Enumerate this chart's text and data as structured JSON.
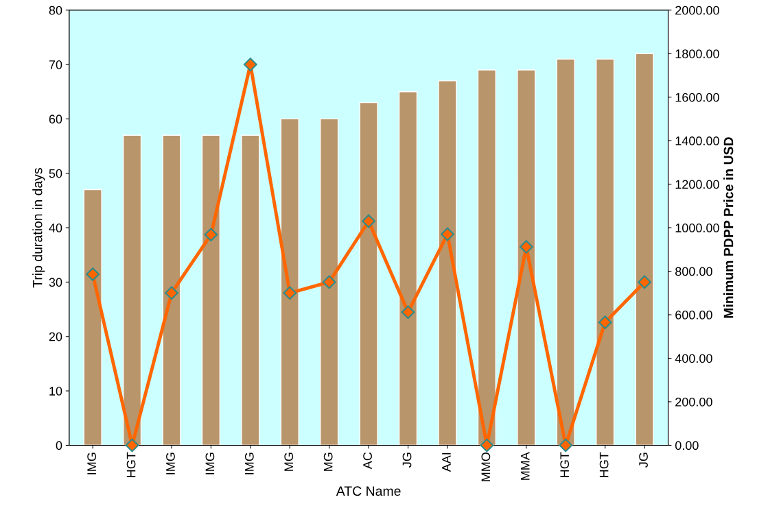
{
  "chart_data": {
    "type": "bar",
    "xlabel": "ATC Name",
    "ylabel": "Trip duration in days",
    "y2label": "Minimum PDPP Price in USD",
    "categories": [
      "IMG",
      "HGT",
      "IMG",
      "IMG",
      "IMG",
      "MG",
      "MG",
      "AC",
      "JG",
      "AAI",
      "MMO",
      "MMA",
      "HGT",
      "HGT",
      "JG"
    ],
    "series": [
      {
        "color": "#b8956a",
        "values": [
          47,
          57,
          57,
          57,
          57,
          60,
          60,
          63,
          65,
          67,
          69,
          69,
          71,
          71,
          72
        ]
      },
      {
        "type": "line",
        "axis": "y2",
        "color": "#ff6600",
        "marker": "diamond",
        "line_style": "solid",
        "values": [
          786,
          0,
          700,
          968,
          1750,
          700,
          750,
          1030,
          612,
          970,
          0,
          912,
          0,
          565,
          750
        ]
      }
    ],
    "ylim": [
      0,
      80
    ],
    "yticks": [
      0,
      10,
      20,
      30,
      40,
      50,
      60,
      70,
      80
    ],
    "y2lim": [
      0,
      2000
    ],
    "y2ticks": [
      {
        "value": 0,
        "label": "0.00"
      },
      {
        "value": 200,
        "label": "200.00"
      },
      {
        "value": 400,
        "label": "400.00"
      },
      {
        "value": 600,
        "label": "600.00"
      },
      {
        "value": 800,
        "label": "800.00"
      },
      {
        "value": 1000,
        "label": "1000.00"
      },
      {
        "value": 1200,
        "label": "1200.00"
      },
      {
        "value": 1400,
        "label": "1400.00"
      },
      {
        "value": 1600,
        "label": "1600.00"
      },
      {
        "value": 1800,
        "label": "1800.00"
      },
      {
        "value": 2000,
        "label": "2000.00"
      }
    ],
    "grid": false,
    "legend": false
  }
}
